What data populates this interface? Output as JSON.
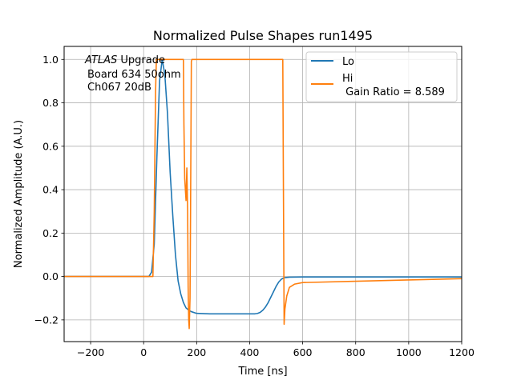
{
  "chart_data": {
    "type": "line",
    "title": "Normalized Pulse Shapes run1495",
    "xlabel": "Time [ns]",
    "ylabel": "Normalized Amplitude (A.U.)",
    "xlim": [
      -300,
      1200
    ],
    "ylim": [
      -0.3,
      1.06
    ],
    "x_ticks": [
      -200,
      0,
      200,
      400,
      600,
      800,
      1000,
      1200
    ],
    "x_tick_labels": [
      "−200",
      "0",
      "200",
      "400",
      "600",
      "800",
      "1000",
      "1200"
    ],
    "y_ticks": [
      -0.2,
      0.0,
      0.2,
      0.4,
      0.6,
      0.8,
      1.0
    ],
    "y_tick_labels": [
      "−0.2",
      "0.0",
      "0.2",
      "0.4",
      "0.6",
      "0.8",
      "1.0"
    ],
    "grid": true,
    "legend_placement": "top-right",
    "annotation": {
      "line1_italic": "ATLAS",
      "line1_rest": " Upgrade",
      "line2": "Board 634 50ohm",
      "line3": "Ch067 20dB"
    },
    "series": [
      {
        "name": "Lo",
        "color": "#1f77b4",
        "x": [
          -300,
          20,
          30,
          40,
          50,
          60,
          70,
          80,
          90,
          100,
          110,
          120,
          130,
          140,
          150,
          160,
          170,
          180,
          200,
          250,
          300,
          350,
          400,
          420,
          430,
          440,
          450,
          460,
          470,
          480,
          490,
          500,
          510,
          520,
          530,
          550,
          600,
          800,
          1000,
          1200
        ],
        "y": [
          0.0,
          0.0,
          0.02,
          0.15,
          0.55,
          0.9,
          1.0,
          0.93,
          0.75,
          0.48,
          0.28,
          0.1,
          -0.02,
          -0.08,
          -0.12,
          -0.145,
          -0.155,
          -0.162,
          -0.17,
          -0.172,
          -0.172,
          -0.172,
          -0.172,
          -0.172,
          -0.17,
          -0.165,
          -0.155,
          -0.14,
          -0.12,
          -0.095,
          -0.07,
          -0.045,
          -0.025,
          -0.012,
          -0.006,
          -0.003,
          -0.002,
          -0.002,
          -0.002,
          -0.002
        ]
      },
      {
        "name": "Hi\n Gain Ratio = 8.589",
        "legend_line1": "Hi",
        "legend_line2": " Gain Ratio = 8.589",
        "color": "#ff7f0e",
        "x": [
          -300,
          35,
          40,
          45,
          48,
          150,
          152,
          155,
          160,
          163,
          166,
          168,
          170,
          172,
          175,
          177,
          180,
          182,
          185,
          525,
          527,
          530,
          533,
          540,
          550,
          570,
          600,
          800,
          1000,
          1200
        ],
        "y": [
          0.0,
          0.0,
          0.3,
          0.85,
          1.0,
          1.0,
          0.7,
          0.45,
          0.35,
          0.5,
          0.3,
          -0.05,
          -0.2,
          -0.24,
          -0.1,
          0.3,
          0.99,
          1.0,
          1.0,
          1.0,
          0.5,
          -0.22,
          -0.15,
          -0.09,
          -0.05,
          -0.035,
          -0.028,
          -0.022,
          -0.016,
          -0.01
        ]
      }
    ]
  }
}
